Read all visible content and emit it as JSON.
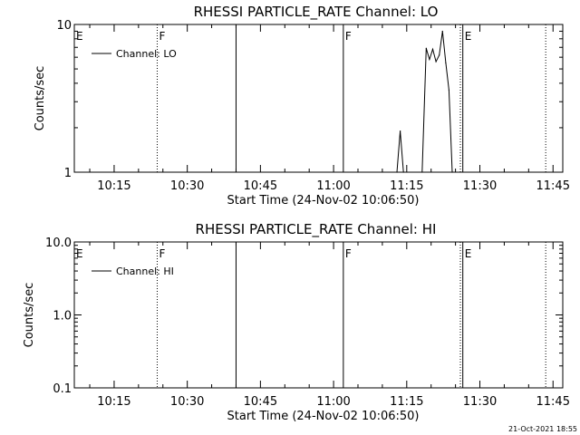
{
  "timestamp": "21-Oct-2021 18:55",
  "chart_data": [
    {
      "type": "line",
      "title": "RHESSI PARTICLE_RATE Channel: LO",
      "xlabel": "Start Time (24-Nov-02 10:06:50)",
      "ylabel": "Counts/sec",
      "yscale": "log",
      "xlim": [
        "10:06:50",
        "11:47:00"
      ],
      "ylim": [
        1,
        10
      ],
      "x_ticks": [
        "10:15",
        "10:30",
        "10:45",
        "11:00",
        "11:15",
        "11:30",
        "11:45"
      ],
      "y_ticks": [
        {
          "value": 1,
          "label": "1"
        },
        {
          "value": 10,
          "label": "10"
        }
      ],
      "legend": {
        "placement": "top-left",
        "entries": [
          "Channel: LO"
        ]
      },
      "markers": [
        {
          "time": "10:06:50",
          "style": "solid",
          "label": "E"
        },
        {
          "time": "10:23:50",
          "style": "dotted",
          "label": "F"
        },
        {
          "time": "10:40:00",
          "style": "solid",
          "label": ""
        },
        {
          "time": "11:02:00",
          "style": "solid",
          "label": "F"
        },
        {
          "time": "11:26:00",
          "style": "dotted",
          "label": ""
        },
        {
          "time": "11:26:30",
          "style": "solid",
          "label": "E"
        },
        {
          "time": "11:43:30",
          "style": "dotted",
          "label": ""
        }
      ],
      "series": [
        {
          "name": "Channel: LO",
          "points": [
            [
              "11:13:00",
              1.0
            ],
            [
              "11:13:40",
              1.9
            ],
            [
              "11:14:20",
              1.0
            ],
            [
              "11:18:10",
              1.0
            ],
            [
              "11:19:00",
              6.9
            ],
            [
              "11:19:40",
              5.8
            ],
            [
              "11:20:20",
              6.8
            ],
            [
              "11:21:00",
              5.6
            ],
            [
              "11:21:40",
              6.2
            ],
            [
              "11:22:20",
              9.0
            ],
            [
              "11:23:00",
              5.5
            ],
            [
              "11:23:40",
              3.6
            ],
            [
              "11:24:20",
              1.0
            ]
          ]
        }
      ]
    },
    {
      "type": "line",
      "title": "RHESSI PARTICLE_RATE Channel: HI",
      "xlabel": "Start Time (24-Nov-02 10:06:50)",
      "ylabel": "Counts/sec",
      "yscale": "log",
      "xlim": [
        "10:06:50",
        "11:47:00"
      ],
      "ylim": [
        0.1,
        10
      ],
      "x_ticks": [
        "10:15",
        "10:30",
        "10:45",
        "11:00",
        "11:15",
        "11:30",
        "11:45"
      ],
      "y_ticks": [
        {
          "value": 0.1,
          "label": "0.1"
        },
        {
          "value": 1,
          "label": "1.0"
        },
        {
          "value": 10,
          "label": "10.0"
        }
      ],
      "legend": {
        "placement": "top-left",
        "entries": [
          "Channel: HI"
        ]
      },
      "markers": [
        {
          "time": "10:06:50",
          "style": "solid",
          "label": "E"
        },
        {
          "time": "10:23:50",
          "style": "dotted",
          "label": "F"
        },
        {
          "time": "10:40:00",
          "style": "solid",
          "label": ""
        },
        {
          "time": "11:02:00",
          "style": "solid",
          "label": "F"
        },
        {
          "time": "11:26:00",
          "style": "dotted",
          "label": ""
        },
        {
          "time": "11:26:30",
          "style": "solid",
          "label": "E"
        },
        {
          "time": "11:43:30",
          "style": "dotted",
          "label": ""
        }
      ],
      "series": [
        {
          "name": "Channel: HI",
          "points": []
        }
      ]
    }
  ]
}
